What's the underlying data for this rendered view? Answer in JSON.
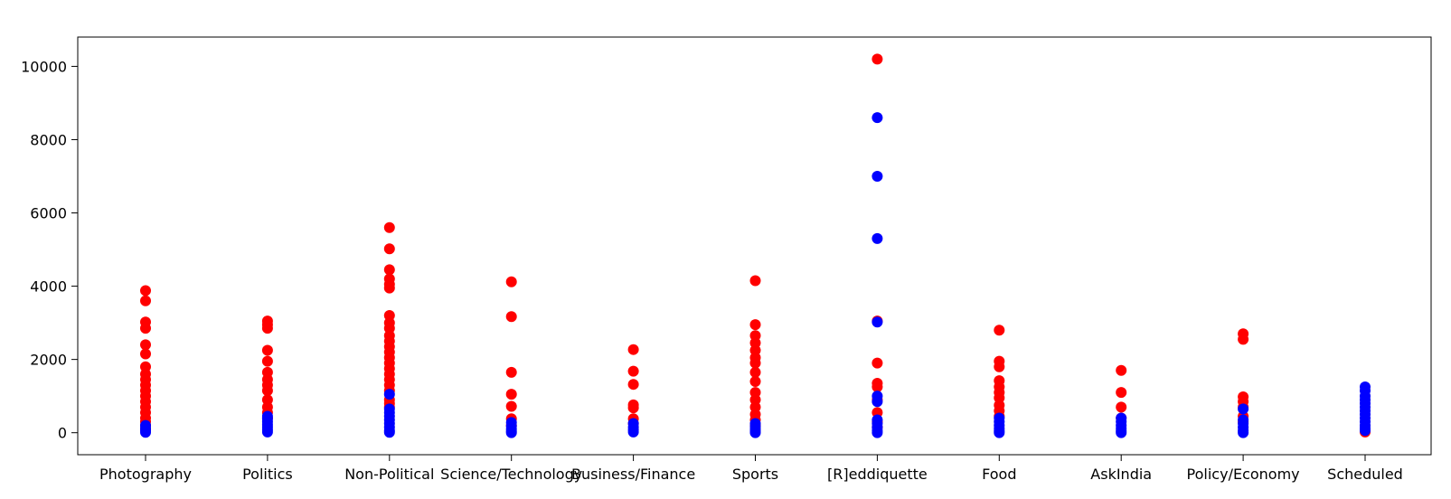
{
  "chart_data": {
    "type": "scatter",
    "title": "",
    "xlabel": "",
    "ylabel": "",
    "grid": false,
    "categories": [
      "Photography",
      "Politics",
      "Non-Political",
      "Science/Technology",
      "Business/Finance",
      "Sports",
      "[R]eddiquette",
      "Food",
      "AskIndia",
      "Policy/Economy",
      "Scheduled"
    ],
    "ylim": [
      -600,
      10800
    ],
    "yticks": [
      0,
      2000,
      4000,
      6000,
      8000,
      10000
    ],
    "series": [
      {
        "name": "red",
        "color": "#ff0000",
        "points": [
          [
            "Photography",
            3880
          ],
          [
            "Photography",
            3600
          ],
          [
            "Photography",
            3020
          ],
          [
            "Photography",
            2850
          ],
          [
            "Photography",
            2400
          ],
          [
            "Photography",
            2150
          ],
          [
            "Photography",
            1800
          ],
          [
            "Photography",
            1600
          ],
          [
            "Photography",
            1450
          ],
          [
            "Photography",
            1300
          ],
          [
            "Photography",
            1150
          ],
          [
            "Photography",
            1000
          ],
          [
            "Photography",
            850
          ],
          [
            "Photography",
            700
          ],
          [
            "Photography",
            550
          ],
          [
            "Photography",
            400
          ],
          [
            "Photography",
            300
          ],
          [
            "Photography",
            200
          ],
          [
            "Photography",
            100
          ],
          [
            "Politics",
            3050
          ],
          [
            "Politics",
            2950
          ],
          [
            "Politics",
            2850
          ],
          [
            "Politics",
            2250
          ],
          [
            "Politics",
            1950
          ],
          [
            "Politics",
            1650
          ],
          [
            "Politics",
            1450
          ],
          [
            "Politics",
            1300
          ],
          [
            "Politics",
            1150
          ],
          [
            "Politics",
            900
          ],
          [
            "Politics",
            700
          ],
          [
            "Politics",
            550
          ],
          [
            "Politics",
            400
          ],
          [
            "Non-Political",
            5600
          ],
          [
            "Non-Political",
            5020
          ],
          [
            "Non-Political",
            4450
          ],
          [
            "Non-Political",
            4200
          ],
          [
            "Non-Political",
            4050
          ],
          [
            "Non-Political",
            3950
          ],
          [
            "Non-Political",
            3200
          ],
          [
            "Non-Political",
            3000
          ],
          [
            "Non-Political",
            2850
          ],
          [
            "Non-Political",
            2650
          ],
          [
            "Non-Political",
            2500
          ],
          [
            "Non-Political",
            2350
          ],
          [
            "Non-Political",
            2200
          ],
          [
            "Non-Political",
            2050
          ],
          [
            "Non-Political",
            1900
          ],
          [
            "Non-Political",
            1750
          ],
          [
            "Non-Political",
            1600
          ],
          [
            "Non-Political",
            1450
          ],
          [
            "Non-Political",
            1300
          ],
          [
            "Non-Political",
            1150
          ],
          [
            "Non-Political",
            900
          ],
          [
            "Non-Political",
            800
          ],
          [
            "Non-Political",
            700
          ],
          [
            "Science/Technology",
            4120
          ],
          [
            "Science/Technology",
            3170
          ],
          [
            "Science/Technology",
            1650
          ],
          [
            "Science/Technology",
            1050
          ],
          [
            "Science/Technology",
            720
          ],
          [
            "Science/Technology",
            380
          ],
          [
            "Science/Technology",
            200
          ],
          [
            "Business/Finance",
            2270
          ],
          [
            "Business/Finance",
            1680
          ],
          [
            "Business/Finance",
            1320
          ],
          [
            "Business/Finance",
            760
          ],
          [
            "Business/Finance",
            680
          ],
          [
            "Business/Finance",
            380
          ],
          [
            "Business/Finance",
            250
          ],
          [
            "Sports",
            4150
          ],
          [
            "Sports",
            2950
          ],
          [
            "Sports",
            2650
          ],
          [
            "Sports",
            2450
          ],
          [
            "Sports",
            2250
          ],
          [
            "Sports",
            2050
          ],
          [
            "Sports",
            1900
          ],
          [
            "Sports",
            1650
          ],
          [
            "Sports",
            1400
          ],
          [
            "Sports",
            1100
          ],
          [
            "Sports",
            900
          ],
          [
            "Sports",
            700
          ],
          [
            "Sports",
            500
          ],
          [
            "Sports",
            350
          ],
          [
            "Sports",
            200
          ],
          [
            "[R]eddiquette",
            10200
          ],
          [
            "[R]eddiquette",
            3050
          ],
          [
            "[R]eddiquette",
            1900
          ],
          [
            "[R]eddiquette",
            1350
          ],
          [
            "[R]eddiquette",
            1250
          ],
          [
            "[R]eddiquette",
            900
          ],
          [
            "[R]eddiquette",
            550
          ],
          [
            "[R]eddiquette",
            300
          ],
          [
            "[R]eddiquette",
            150
          ],
          [
            "Food",
            2800
          ],
          [
            "Food",
            1950
          ],
          [
            "Food",
            1800
          ],
          [
            "Food",
            1420
          ],
          [
            "Food",
            1250
          ],
          [
            "Food",
            1100
          ],
          [
            "Food",
            950
          ],
          [
            "Food",
            750
          ],
          [
            "Food",
            600
          ],
          [
            "Food",
            450
          ],
          [
            "AskIndia",
            1700
          ],
          [
            "AskIndia",
            1100
          ],
          [
            "AskIndia",
            700
          ],
          [
            "AskIndia",
            400
          ],
          [
            "Policy/Economy",
            2700
          ],
          [
            "Policy/Economy",
            2550
          ],
          [
            "Policy/Economy",
            980
          ],
          [
            "Policy/Economy",
            850
          ],
          [
            "Policy/Economy",
            700
          ],
          [
            "Policy/Economy",
            450
          ],
          [
            "Policy/Economy",
            300
          ],
          [
            "Scheduled",
            20
          ]
        ]
      },
      {
        "name": "blue",
        "color": "#0000ff",
        "points": [
          [
            "Photography",
            200
          ],
          [
            "Photography",
            120
          ],
          [
            "Photography",
            60
          ],
          [
            "Photography",
            10
          ],
          [
            "Politics",
            450
          ],
          [
            "Politics",
            380
          ],
          [
            "Politics",
            300
          ],
          [
            "Politics",
            220
          ],
          [
            "Politics",
            150
          ],
          [
            "Politics",
            80
          ],
          [
            "Politics",
            20
          ],
          [
            "Non-Political",
            1050
          ],
          [
            "Non-Political",
            650
          ],
          [
            "Non-Political",
            550
          ],
          [
            "Non-Political",
            450
          ],
          [
            "Non-Political",
            350
          ],
          [
            "Non-Political",
            250
          ],
          [
            "Non-Political",
            150
          ],
          [
            "Non-Political",
            60
          ],
          [
            "Non-Political",
            10
          ],
          [
            "Science/Technology",
            280
          ],
          [
            "Science/Technology",
            180
          ],
          [
            "Science/Technology",
            100
          ],
          [
            "Science/Technology",
            40
          ],
          [
            "Science/Technology",
            0
          ],
          [
            "Business/Finance",
            250
          ],
          [
            "Business/Finance",
            150
          ],
          [
            "Business/Finance",
            80
          ],
          [
            "Business/Finance",
            20
          ],
          [
            "Sports",
            250
          ],
          [
            "Sports",
            170
          ],
          [
            "Sports",
            100
          ],
          [
            "Sports",
            40
          ],
          [
            "Sports",
            0
          ],
          [
            "[R]eddiquette",
            8600
          ],
          [
            "[R]eddiquette",
            7000
          ],
          [
            "[R]eddiquette",
            5300
          ],
          [
            "[R]eddiquette",
            3020
          ],
          [
            "[R]eddiquette",
            1000
          ],
          [
            "[R]eddiquette",
            850
          ],
          [
            "[R]eddiquette",
            350
          ],
          [
            "[R]eddiquette",
            250
          ],
          [
            "[R]eddiquette",
            150
          ],
          [
            "[R]eddiquette",
            60
          ],
          [
            "[R]eddiquette",
            0
          ],
          [
            "Food",
            400
          ],
          [
            "Food",
            300
          ],
          [
            "Food",
            200
          ],
          [
            "Food",
            120
          ],
          [
            "Food",
            50
          ],
          [
            "Food",
            0
          ],
          [
            "AskIndia",
            400
          ],
          [
            "AskIndia",
            300
          ],
          [
            "AskIndia",
            200
          ],
          [
            "AskIndia",
            120
          ],
          [
            "AskIndia",
            50
          ],
          [
            "AskIndia",
            0
          ],
          [
            "Policy/Economy",
            650
          ],
          [
            "Policy/Economy",
            350
          ],
          [
            "Policy/Economy",
            250
          ],
          [
            "Policy/Economy",
            150
          ],
          [
            "Policy/Economy",
            60
          ],
          [
            "Policy/Economy",
            0
          ],
          [
            "Scheduled",
            1250
          ],
          [
            "Scheduled",
            1150
          ],
          [
            "Scheduled",
            1000
          ],
          [
            "Scheduled",
            900
          ],
          [
            "Scheduled",
            800
          ],
          [
            "Scheduled",
            700
          ],
          [
            "Scheduled",
            600
          ],
          [
            "Scheduled",
            500
          ],
          [
            "Scheduled",
            400
          ],
          [
            "Scheduled",
            300
          ],
          [
            "Scheduled",
            200
          ],
          [
            "Scheduled",
            120
          ],
          [
            "Scheduled",
            60
          ]
        ]
      }
    ]
  }
}
